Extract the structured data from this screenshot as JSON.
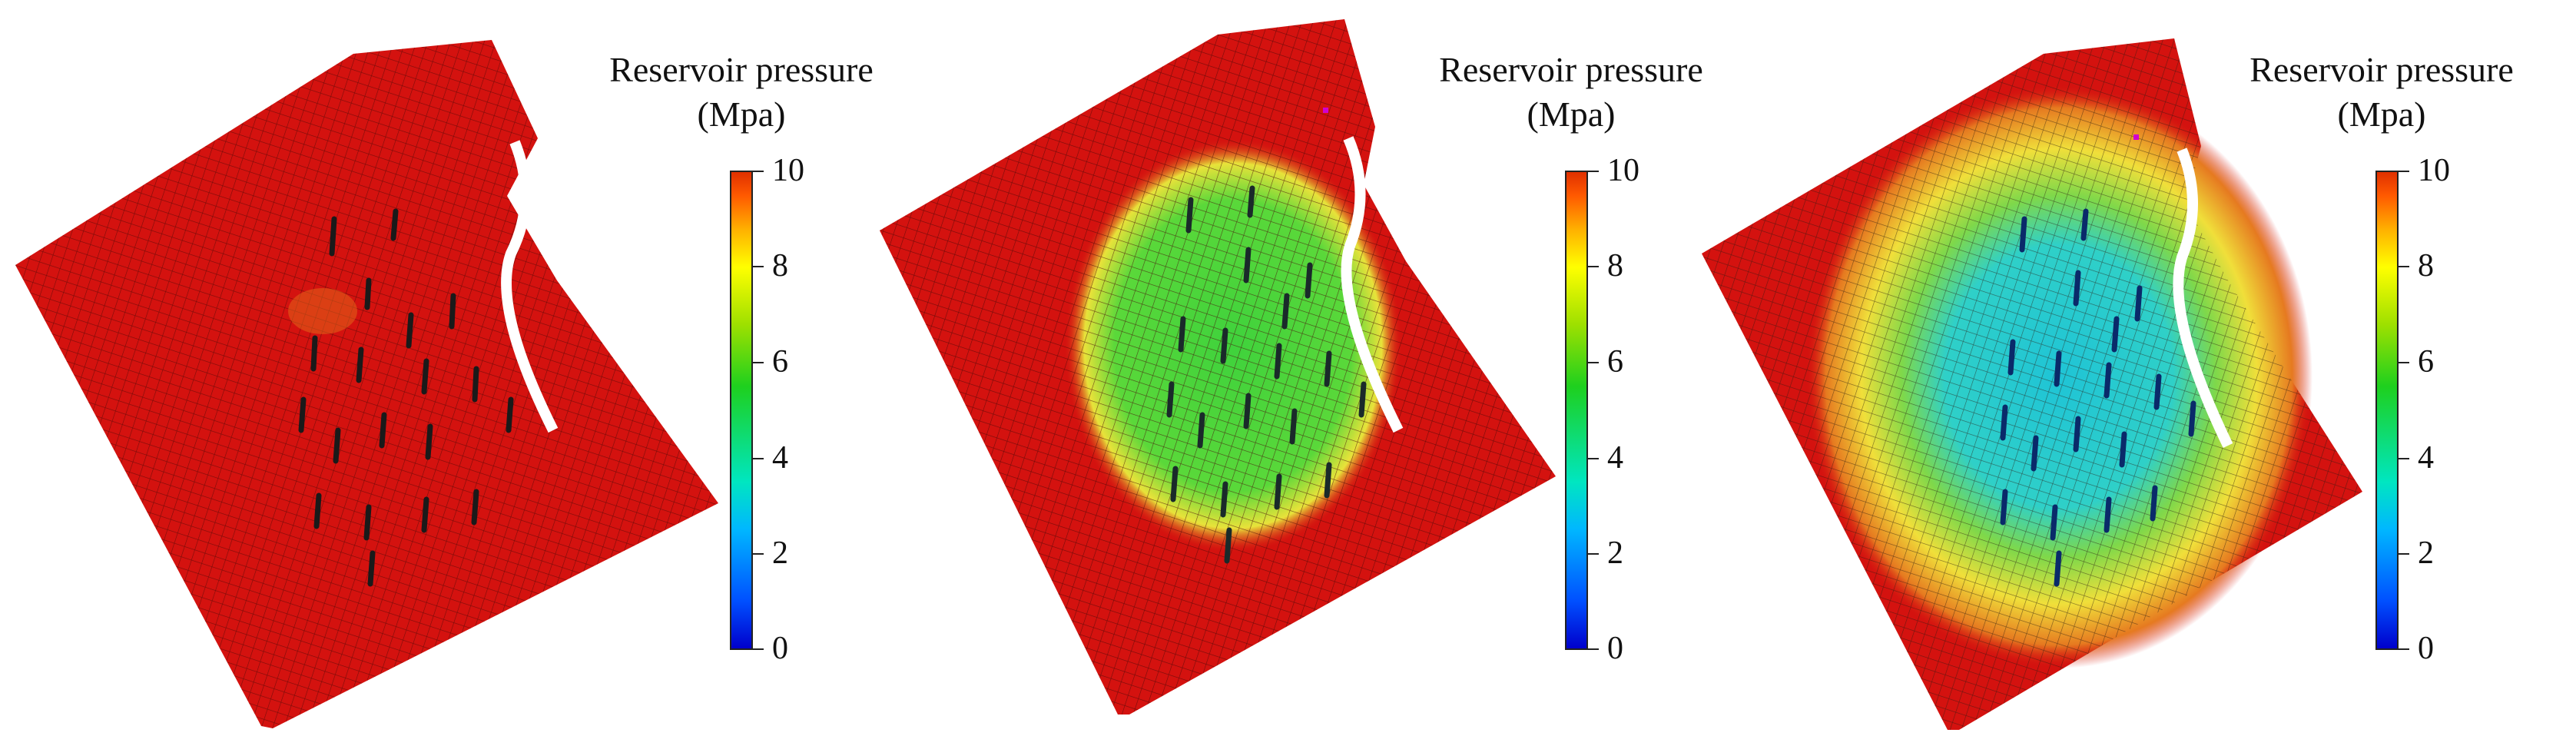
{
  "colorbar": {
    "title_line1": "Reservoir pressure",
    "title_line2": "(Mpa)",
    "ticks": [
      "10",
      "8",
      "6",
      "4",
      "2",
      "0"
    ],
    "range": [
      0,
      10
    ]
  },
  "colors": {
    "high_pressure": "#d4120f",
    "mid_pressure": "#3fd23c",
    "low_pressure": "#22c9d6",
    "transition": "#f3d23a"
  },
  "panels": [
    {
      "id": "panel-1",
      "state": "initial"
    },
    {
      "id": "panel-2",
      "state": "intermediate"
    },
    {
      "id": "panel-3",
      "state": "late"
    }
  ]
}
